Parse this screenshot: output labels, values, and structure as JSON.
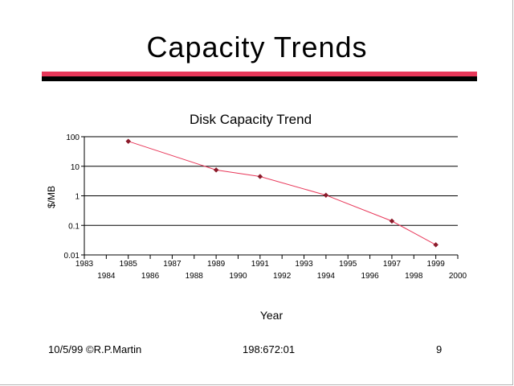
{
  "slide": {
    "title": "Capacity Trends",
    "footer_left": "10/5/99 ©R.P.Martin",
    "footer_center": "198:672:01",
    "footer_right": "9"
  },
  "colors": {
    "title_bar_red": "#e8385a",
    "title_bar_black": "#000000",
    "series_line": "#e8385a",
    "marker": "#8b1a2a"
  },
  "chart_data": {
    "type": "line",
    "title": "Disk Capacity Trend",
    "xlabel": "Year",
    "ylabel": "$/MB",
    "xlim": [
      1983,
      2000
    ],
    "ylim": [
      0.01,
      100
    ],
    "y_scale": "log",
    "grid": "horizontal",
    "legend": "none",
    "x_ticks": [
      "1983",
      "1984",
      "1985",
      "1986",
      "1987",
      "1988",
      "1989",
      "1990",
      "1991",
      "1992",
      "1993",
      "1994",
      "1995",
      "1996",
      "1997",
      "1998",
      "1999",
      "2000"
    ],
    "y_ticks": [
      "100",
      "10",
      "1",
      "0.1",
      "0.01"
    ],
    "series": [
      {
        "x": [
          1985,
          1989,
          1991,
          1994,
          1997,
          1999
        ],
        "y": [
          70,
          7.5,
          4.5,
          1.05,
          0.14,
          0.022
        ]
      }
    ]
  }
}
